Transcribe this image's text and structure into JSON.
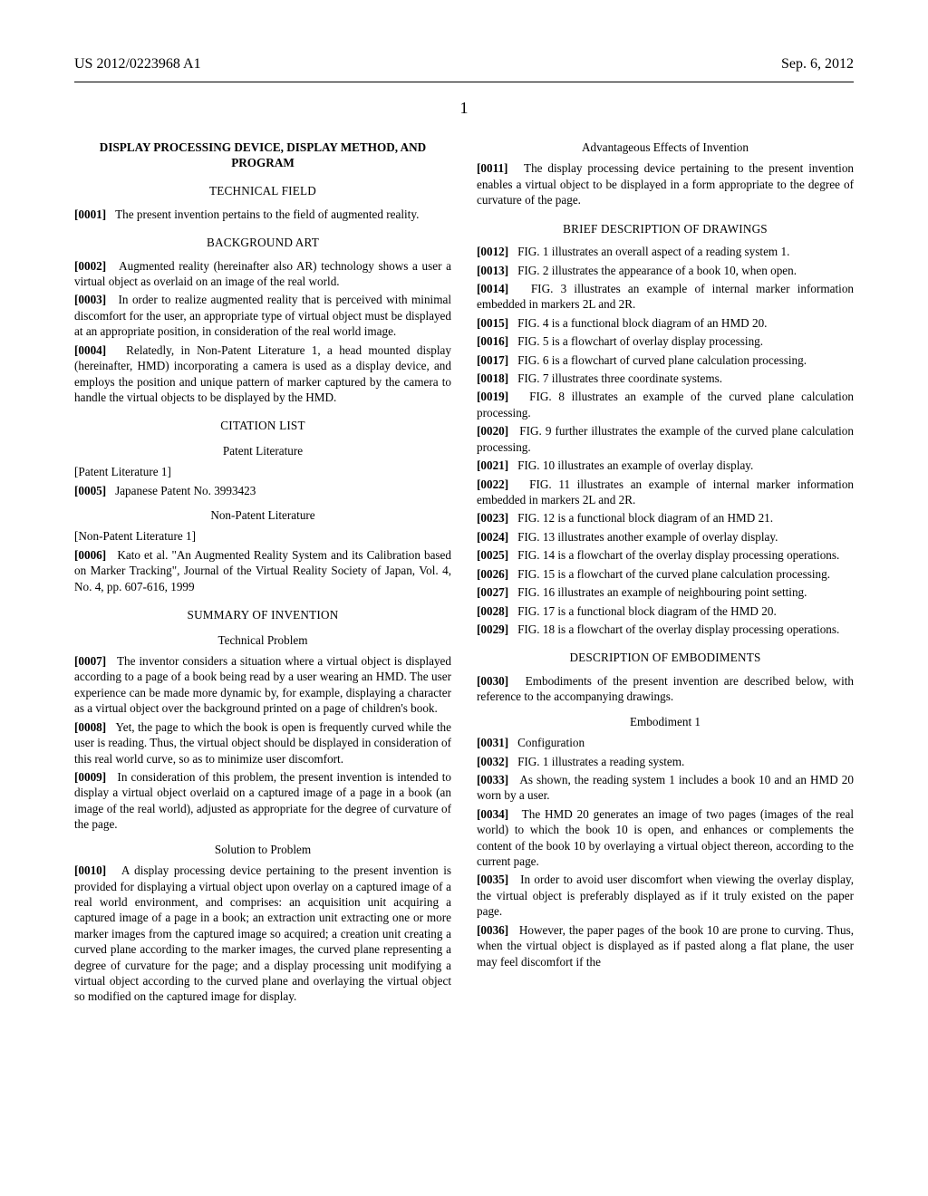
{
  "header": {
    "left": "US 2012/0223968 A1",
    "right": "Sep. 6, 2012"
  },
  "page_number": "1",
  "title": "DISPLAY PROCESSING DEVICE, DISPLAY METHOD, AND PROGRAM",
  "sections": {
    "technical_field": "TECHNICAL FIELD",
    "background_art": "BACKGROUND ART",
    "citation_list": "CITATION LIST",
    "patent_literature": "Patent Literature",
    "non_patent_literature": "Non-Patent Literature",
    "summary": "SUMMARY OF INVENTION",
    "technical_problem": "Technical Problem",
    "solution": "Solution to Problem",
    "advantageous": "Advantageous Effects of Invention",
    "brief_desc": "BRIEF DESCRIPTION OF DRAWINGS",
    "desc_embodiments": "DESCRIPTION OF EMBODIMENTS",
    "embodiment1": "Embodiment 1"
  },
  "plain": {
    "pl1": "[Patent Literature 1]",
    "npl1": "[Non-Patent Literature 1]"
  },
  "p": {
    "n0001": "[0001]",
    "t0001": "The present invention pertains to the field of augmented reality.",
    "n0002": "[0002]",
    "t0002": "Augmented reality (hereinafter also AR) technology shows a user a virtual object as overlaid on an image of the real world.",
    "n0003": "[0003]",
    "t0003": "In order to realize augmented reality that is perceived with minimal discomfort for the user, an appropriate type of virtual object must be displayed at an appropriate position, in consideration of the real world image.",
    "n0004": "[0004]",
    "t0004": "Relatedly, in Non-Patent Literature 1, a head mounted display (hereinafter, HMD) incorporating a camera is used as a display device, and employs the position and unique pattern of marker captured by the camera to handle the virtual objects to be displayed by the HMD.",
    "n0005": "[0005]",
    "t0005": "Japanese Patent No. 3993423",
    "n0006": "[0006]",
    "t0006": "Kato et al. \"An Augmented Reality System and its Calibration based on Marker Tracking\", Journal of the Virtual Reality Society of Japan, Vol. 4, No. 4, pp. 607-616, 1999",
    "n0007": "[0007]",
    "t0007": "The inventor considers a situation where a virtual object is displayed according to a page of a book being read by a user wearing an HMD. The user experience can be made more dynamic by, for example, displaying a character as a virtual object over the background printed on a page of children's book.",
    "n0008": "[0008]",
    "t0008": "Yet, the page to which the book is open is frequently curved while the user is reading. Thus, the virtual object should be displayed in consideration of this real world curve, so as to minimize user discomfort.",
    "n0009": "[0009]",
    "t0009": "In consideration of this problem, the present invention is intended to display a virtual object overlaid on a captured image of a page in a book (an image of the real world), adjusted as appropriate for the degree of curvature of the page.",
    "n0010": "[0010]",
    "t0010": "A display processing device pertaining to the present invention is provided for displaying a virtual object upon overlay on a captured image of a real world environment, and comprises: an acquisition unit acquiring a captured image of a page in a book; an extraction unit extracting one or more marker images from the captured image so acquired; a creation unit creating a curved plane according to the marker images, the curved plane representing a degree of curvature for the page; and a display processing unit modifying a virtual object according to the curved plane and overlaying the virtual object so modified on the captured image for display.",
    "n0011": "[0011]",
    "t0011": "The display processing device pertaining to the present invention enables a virtual object to be displayed in a form appropriate to the degree of curvature of the page.",
    "n0012": "[0012]",
    "t0012": "FIG. 1 illustrates an overall aspect of a reading system 1.",
    "n0013": "[0013]",
    "t0013": "FIG. 2 illustrates the appearance of a book 10, when open.",
    "n0014": "[0014]",
    "t0014": "FIG. 3 illustrates an example of internal marker information embedded in markers 2L and 2R.",
    "n0015": "[0015]",
    "t0015": "FIG. 4 is a functional block diagram of an HMD 20.",
    "n0016": "[0016]",
    "t0016": "FIG. 5 is a flowchart of overlay display processing.",
    "n0017": "[0017]",
    "t0017": "FIG. 6 is a flowchart of curved plane calculation processing.",
    "n0018": "[0018]",
    "t0018": "FIG. 7 illustrates three coordinate systems.",
    "n0019": "[0019]",
    "t0019": "FIG. 8 illustrates an example of the curved plane calculation processing.",
    "n0020": "[0020]",
    "t0020": "FIG. 9 further illustrates the example of the curved plane calculation processing.",
    "n0021": "[0021]",
    "t0021": "FIG. 10 illustrates an example of overlay display.",
    "n0022": "[0022]",
    "t0022": "FIG. 11 illustrates an example of internal marker information embedded in markers 2L and 2R.",
    "n0023": "[0023]",
    "t0023": "FIG. 12 is a functional block diagram of an HMD 21.",
    "n0024": "[0024]",
    "t0024": "FIG. 13 illustrates another example of overlay display.",
    "n0025": "[0025]",
    "t0025": "FIG. 14 is a flowchart of the overlay display processing operations.",
    "n0026": "[0026]",
    "t0026": "FIG. 15 is a flowchart of the curved plane calculation processing.",
    "n0027": "[0027]",
    "t0027": "FIG. 16 illustrates an example of neighbouring point setting.",
    "n0028": "[0028]",
    "t0028": "FIG. 17 is a functional block diagram of the HMD 20.",
    "n0029": "[0029]",
    "t0029": "FIG. 18 is a flowchart of the overlay display processing operations.",
    "n0030": "[0030]",
    "t0030": "Embodiments of the present invention are described below, with reference to the accompanying drawings.",
    "n0031": "[0031]",
    "t0031": "Configuration",
    "n0032": "[0032]",
    "t0032": "FIG. 1 illustrates a reading system.",
    "n0033": "[0033]",
    "t0033": "As shown, the reading system 1 includes a book 10 and an HMD 20 worn by a user.",
    "n0034": "[0034]",
    "t0034": "The HMD 20 generates an image of two pages (images of the real world) to which the book 10 is open, and enhances or complements the content of the book 10 by overlaying a virtual object thereon, according to the current page.",
    "n0035": "[0035]",
    "t0035": "In order to avoid user discomfort when viewing the overlay display, the virtual object is preferably displayed as if it truly existed on the paper page.",
    "n0036": "[0036]",
    "t0036": "However, the paper pages of the book 10 are prone to curving. Thus, when the virtual object is displayed as if pasted along a flat plane, the user may feel discomfort if the"
  }
}
